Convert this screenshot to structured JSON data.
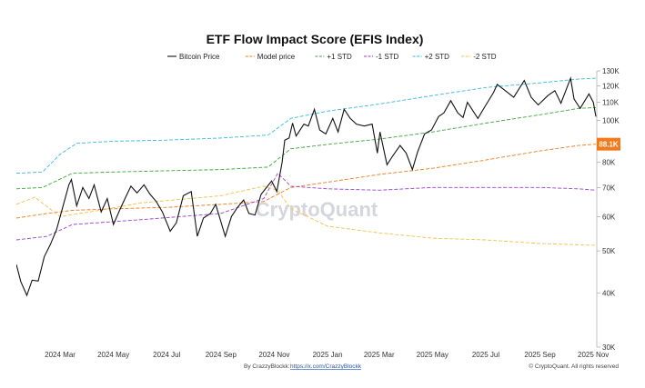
{
  "chart_data": {
    "type": "line",
    "title": "ETF Flow Impact Score (EFIS Index)",
    "y_scale": "log",
    "ylim": [
      30000,
      130000
    ],
    "y_ticks": [
      {
        "value": 130000,
        "label": "130K"
      },
      {
        "value": 120000,
        "label": "120K"
      },
      {
        "value": 110000,
        "label": "110K"
      },
      {
        "value": 100000,
        "label": "100K"
      },
      {
        "value": 80000,
        "label": "80K"
      },
      {
        "value": 70000,
        "label": "70K"
      },
      {
        "value": 60000,
        "label": "60K"
      },
      {
        "value": 50000,
        "label": "50K"
      },
      {
        "value": 40000,
        "label": "40K"
      },
      {
        "value": 30000,
        "label": "30K"
      }
    ],
    "xlim": [
      "2024-01-11",
      "2025-11-05"
    ],
    "x_ticks": [
      {
        "date": "2024-03-01",
        "label": "2024 Mar"
      },
      {
        "date": "2024-05-01",
        "label": "2024 May"
      },
      {
        "date": "2024-07-01",
        "label": "2024 Jul"
      },
      {
        "date": "2024-09-01",
        "label": "2024 Sep"
      },
      {
        "date": "2024-11-01",
        "label": "2024 Nov"
      },
      {
        "date": "2025-01-01",
        "label": "2025 Jan"
      },
      {
        "date": "2025-03-01",
        "label": "2025 Mar"
      },
      {
        "date": "2025-05-01",
        "label": "2025 May"
      },
      {
        "date": "2025-07-01",
        "label": "2025 Jul"
      },
      {
        "date": "2025-09-01",
        "label": "2025 Sep"
      },
      {
        "date": "2025-11-01",
        "label": "2025 Nov"
      }
    ],
    "legend_position": "top",
    "current_value_label": "88.1K",
    "current_value": 88100,
    "current_value_color": "#f07b1f",
    "series": [
      {
        "name": "Bitcoin Price",
        "color": "#111111",
        "dash": "solid",
        "points": [
          [
            "2024-01-11",
            46500
          ],
          [
            "2024-01-16",
            42500
          ],
          [
            "2024-01-23",
            39500
          ],
          [
            "2024-01-29",
            42800
          ],
          [
            "2024-02-05",
            42600
          ],
          [
            "2024-02-12",
            48500
          ],
          [
            "2024-02-19",
            51800
          ],
          [
            "2024-02-26",
            56000
          ],
          [
            "2024-03-04",
            63000
          ],
          [
            "2024-03-11",
            71000
          ],
          [
            "2024-03-14",
            73000
          ],
          [
            "2024-03-20",
            63500
          ],
          [
            "2024-03-27",
            70000
          ],
          [
            "2024-04-03",
            66000
          ],
          [
            "2024-04-09",
            71000
          ],
          [
            "2024-04-17",
            61500
          ],
          [
            "2024-04-24",
            66000
          ],
          [
            "2024-05-01",
            57500
          ],
          [
            "2024-05-08",
            62000
          ],
          [
            "2024-05-15",
            66500
          ],
          [
            "2024-05-21",
            70500
          ],
          [
            "2024-05-28",
            68000
          ],
          [
            "2024-06-05",
            71000
          ],
          [
            "2024-06-12",
            67500
          ],
          [
            "2024-06-19",
            65000
          ],
          [
            "2024-06-26",
            61500
          ],
          [
            "2024-07-05",
            55500
          ],
          [
            "2024-07-12",
            58000
          ],
          [
            "2024-07-20",
            67000
          ],
          [
            "2024-07-29",
            68500
          ],
          [
            "2024-08-05",
            54000
          ],
          [
            "2024-08-12",
            59500
          ],
          [
            "2024-08-20",
            61000
          ],
          [
            "2024-08-26",
            64000
          ],
          [
            "2024-09-06",
            54000
          ],
          [
            "2024-09-13",
            60000
          ],
          [
            "2024-09-20",
            63000
          ],
          [
            "2024-09-27",
            65500
          ],
          [
            "2024-10-03",
            61000
          ],
          [
            "2024-10-10",
            60500
          ],
          [
            "2024-10-17",
            67500
          ],
          [
            "2024-10-29",
            72500
          ],
          [
            "2024-11-04",
            68500
          ],
          [
            "2024-11-10",
            80000
          ],
          [
            "2024-11-13",
            90000
          ],
          [
            "2024-11-18",
            91000
          ],
          [
            "2024-11-22",
            98500
          ],
          [
            "2024-11-26",
            92000
          ],
          [
            "2024-12-05",
            98000
          ],
          [
            "2024-12-10",
            97000
          ],
          [
            "2024-12-17",
            106000
          ],
          [
            "2024-12-23",
            95000
          ],
          [
            "2024-12-30",
            93000
          ],
          [
            "2025-01-07",
            101000
          ],
          [
            "2025-01-13",
            94000
          ],
          [
            "2025-01-20",
            106000
          ],
          [
            "2025-01-27",
            101000
          ],
          [
            "2025-02-03",
            98000
          ],
          [
            "2025-02-12",
            97000
          ],
          [
            "2025-02-21",
            98000
          ],
          [
            "2025-02-27",
            84000
          ],
          [
            "2025-03-02",
            94000
          ],
          [
            "2025-03-10",
            79000
          ],
          [
            "2025-03-17",
            83000
          ],
          [
            "2025-03-25",
            87500
          ],
          [
            "2025-04-01",
            84000
          ],
          [
            "2025-04-08",
            77000
          ],
          [
            "2025-04-14",
            84500
          ],
          [
            "2025-04-22",
            93000
          ],
          [
            "2025-04-30",
            95000
          ],
          [
            "2025-05-08",
            102000
          ],
          [
            "2025-05-14",
            104000
          ],
          [
            "2025-05-22",
            111000
          ],
          [
            "2025-05-30",
            104000
          ],
          [
            "2025-06-05",
            101500
          ],
          [
            "2025-06-10",
            110000
          ],
          [
            "2025-06-22",
            101000
          ],
          [
            "2025-06-30",
            107500
          ],
          [
            "2025-07-10",
            116000
          ],
          [
            "2025-07-14",
            121000
          ],
          [
            "2025-07-21",
            118000
          ],
          [
            "2025-08-02",
            113000
          ],
          [
            "2025-08-14",
            123500
          ],
          [
            "2025-08-22",
            113000
          ],
          [
            "2025-08-30",
            108500
          ],
          [
            "2025-09-10",
            114000
          ],
          [
            "2025-09-18",
            117000
          ],
          [
            "2025-09-25",
            109500
          ],
          [
            "2025-10-06",
            125000
          ],
          [
            "2025-10-10",
            112000
          ],
          [
            "2025-10-17",
            106500
          ],
          [
            "2025-10-27",
            115000
          ],
          [
            "2025-11-01",
            110000
          ],
          [
            "2025-11-04",
            102000
          ]
        ]
      },
      {
        "name": "Model price",
        "color": "#f07b1f",
        "dash": "4 2",
        "points": [
          [
            "2024-01-11",
            59500
          ],
          [
            "2024-02-15",
            61000
          ],
          [
            "2024-03-15",
            62000
          ],
          [
            "2024-05-01",
            62500
          ],
          [
            "2024-07-01",
            63000
          ],
          [
            "2024-09-01",
            64000
          ],
          [
            "2024-10-20",
            65000
          ],
          [
            "2024-11-20",
            70000
          ],
          [
            "2025-01-01",
            72000
          ],
          [
            "2025-03-01",
            75000
          ],
          [
            "2025-05-01",
            77500
          ],
          [
            "2025-07-01",
            81000
          ],
          [
            "2025-09-01",
            85000
          ],
          [
            "2025-10-15",
            87500
          ],
          [
            "2025-11-04",
            88100
          ]
        ]
      },
      {
        "name": "+1 STD",
        "color": "#3aa63a",
        "dash": "4 2",
        "points": [
          [
            "2024-01-11",
            69500
          ],
          [
            "2024-02-10",
            70000
          ],
          [
            "2024-03-15",
            75500
          ],
          [
            "2024-05-01",
            76000
          ],
          [
            "2024-07-01",
            76500
          ],
          [
            "2024-09-01",
            77000
          ],
          [
            "2024-10-25",
            78000
          ],
          [
            "2024-11-20",
            86000
          ],
          [
            "2025-01-01",
            88000
          ],
          [
            "2025-03-01",
            90500
          ],
          [
            "2025-05-01",
            94000
          ],
          [
            "2025-07-01",
            98500
          ],
          [
            "2025-09-01",
            103000
          ],
          [
            "2025-10-15",
            106500
          ],
          [
            "2025-11-04",
            107000
          ]
        ]
      },
      {
        "name": "-1 STD",
        "color": "#9b3fd1",
        "dash": "4 2",
        "points": [
          [
            "2024-01-11",
            53000
          ],
          [
            "2024-02-15",
            54000
          ],
          [
            "2024-03-15",
            57500
          ],
          [
            "2024-06-01",
            59000
          ],
          [
            "2024-09-01",
            61000
          ],
          [
            "2024-10-20",
            66000
          ],
          [
            "2024-11-05",
            75500
          ],
          [
            "2024-11-20",
            70500
          ],
          [
            "2025-01-01",
            69500
          ],
          [
            "2025-03-01",
            69000
          ],
          [
            "2025-05-01",
            70000
          ],
          [
            "2025-07-01",
            70000
          ],
          [
            "2025-09-01",
            70000
          ],
          [
            "2025-10-15",
            69500
          ],
          [
            "2025-11-04",
            69000
          ]
        ]
      },
      {
        "name": "+2 STD",
        "color": "#38b8e0",
        "dash": "4 2",
        "points": [
          [
            "2024-01-11",
            75500
          ],
          [
            "2024-02-10",
            76000
          ],
          [
            "2024-03-01",
            83500
          ],
          [
            "2024-03-20",
            88500
          ],
          [
            "2024-05-01",
            89500
          ],
          [
            "2024-07-01",
            90000
          ],
          [
            "2024-09-01",
            91000
          ],
          [
            "2024-10-25",
            92500
          ],
          [
            "2024-11-20",
            101000
          ],
          [
            "2025-01-01",
            105000
          ],
          [
            "2025-03-01",
            109000
          ],
          [
            "2025-05-01",
            114000
          ],
          [
            "2025-07-01",
            119000
          ],
          [
            "2025-09-01",
            122000
          ],
          [
            "2025-10-15",
            124500
          ],
          [
            "2025-11-04",
            125000
          ]
        ]
      },
      {
        "name": "-2 STD",
        "color": "#f2c14e",
        "dash": "4 2",
        "points": [
          [
            "2024-01-11",
            64000
          ],
          [
            "2024-02-01",
            66500
          ],
          [
            "2024-03-01",
            60000
          ],
          [
            "2024-04-15",
            62000
          ],
          [
            "2024-06-01",
            64500
          ],
          [
            "2024-09-01",
            67000
          ],
          [
            "2024-10-20",
            70500
          ],
          [
            "2024-11-05",
            69000
          ],
          [
            "2024-11-20",
            62500
          ],
          [
            "2025-01-01",
            57000
          ],
          [
            "2025-03-01",
            55000
          ],
          [
            "2025-05-01",
            53500
          ],
          [
            "2025-07-01",
            53000
          ],
          [
            "2025-09-01",
            52000
          ],
          [
            "2025-11-04",
            51500
          ]
        ]
      }
    ]
  },
  "watermark": "CryptoQuant",
  "footer": {
    "author_prefix": "By CrazzyBlockk:",
    "author_link": "https://x.com/CrazzyBlockk",
    "copyright": "© CryptoQuant. All rights reserved"
  }
}
